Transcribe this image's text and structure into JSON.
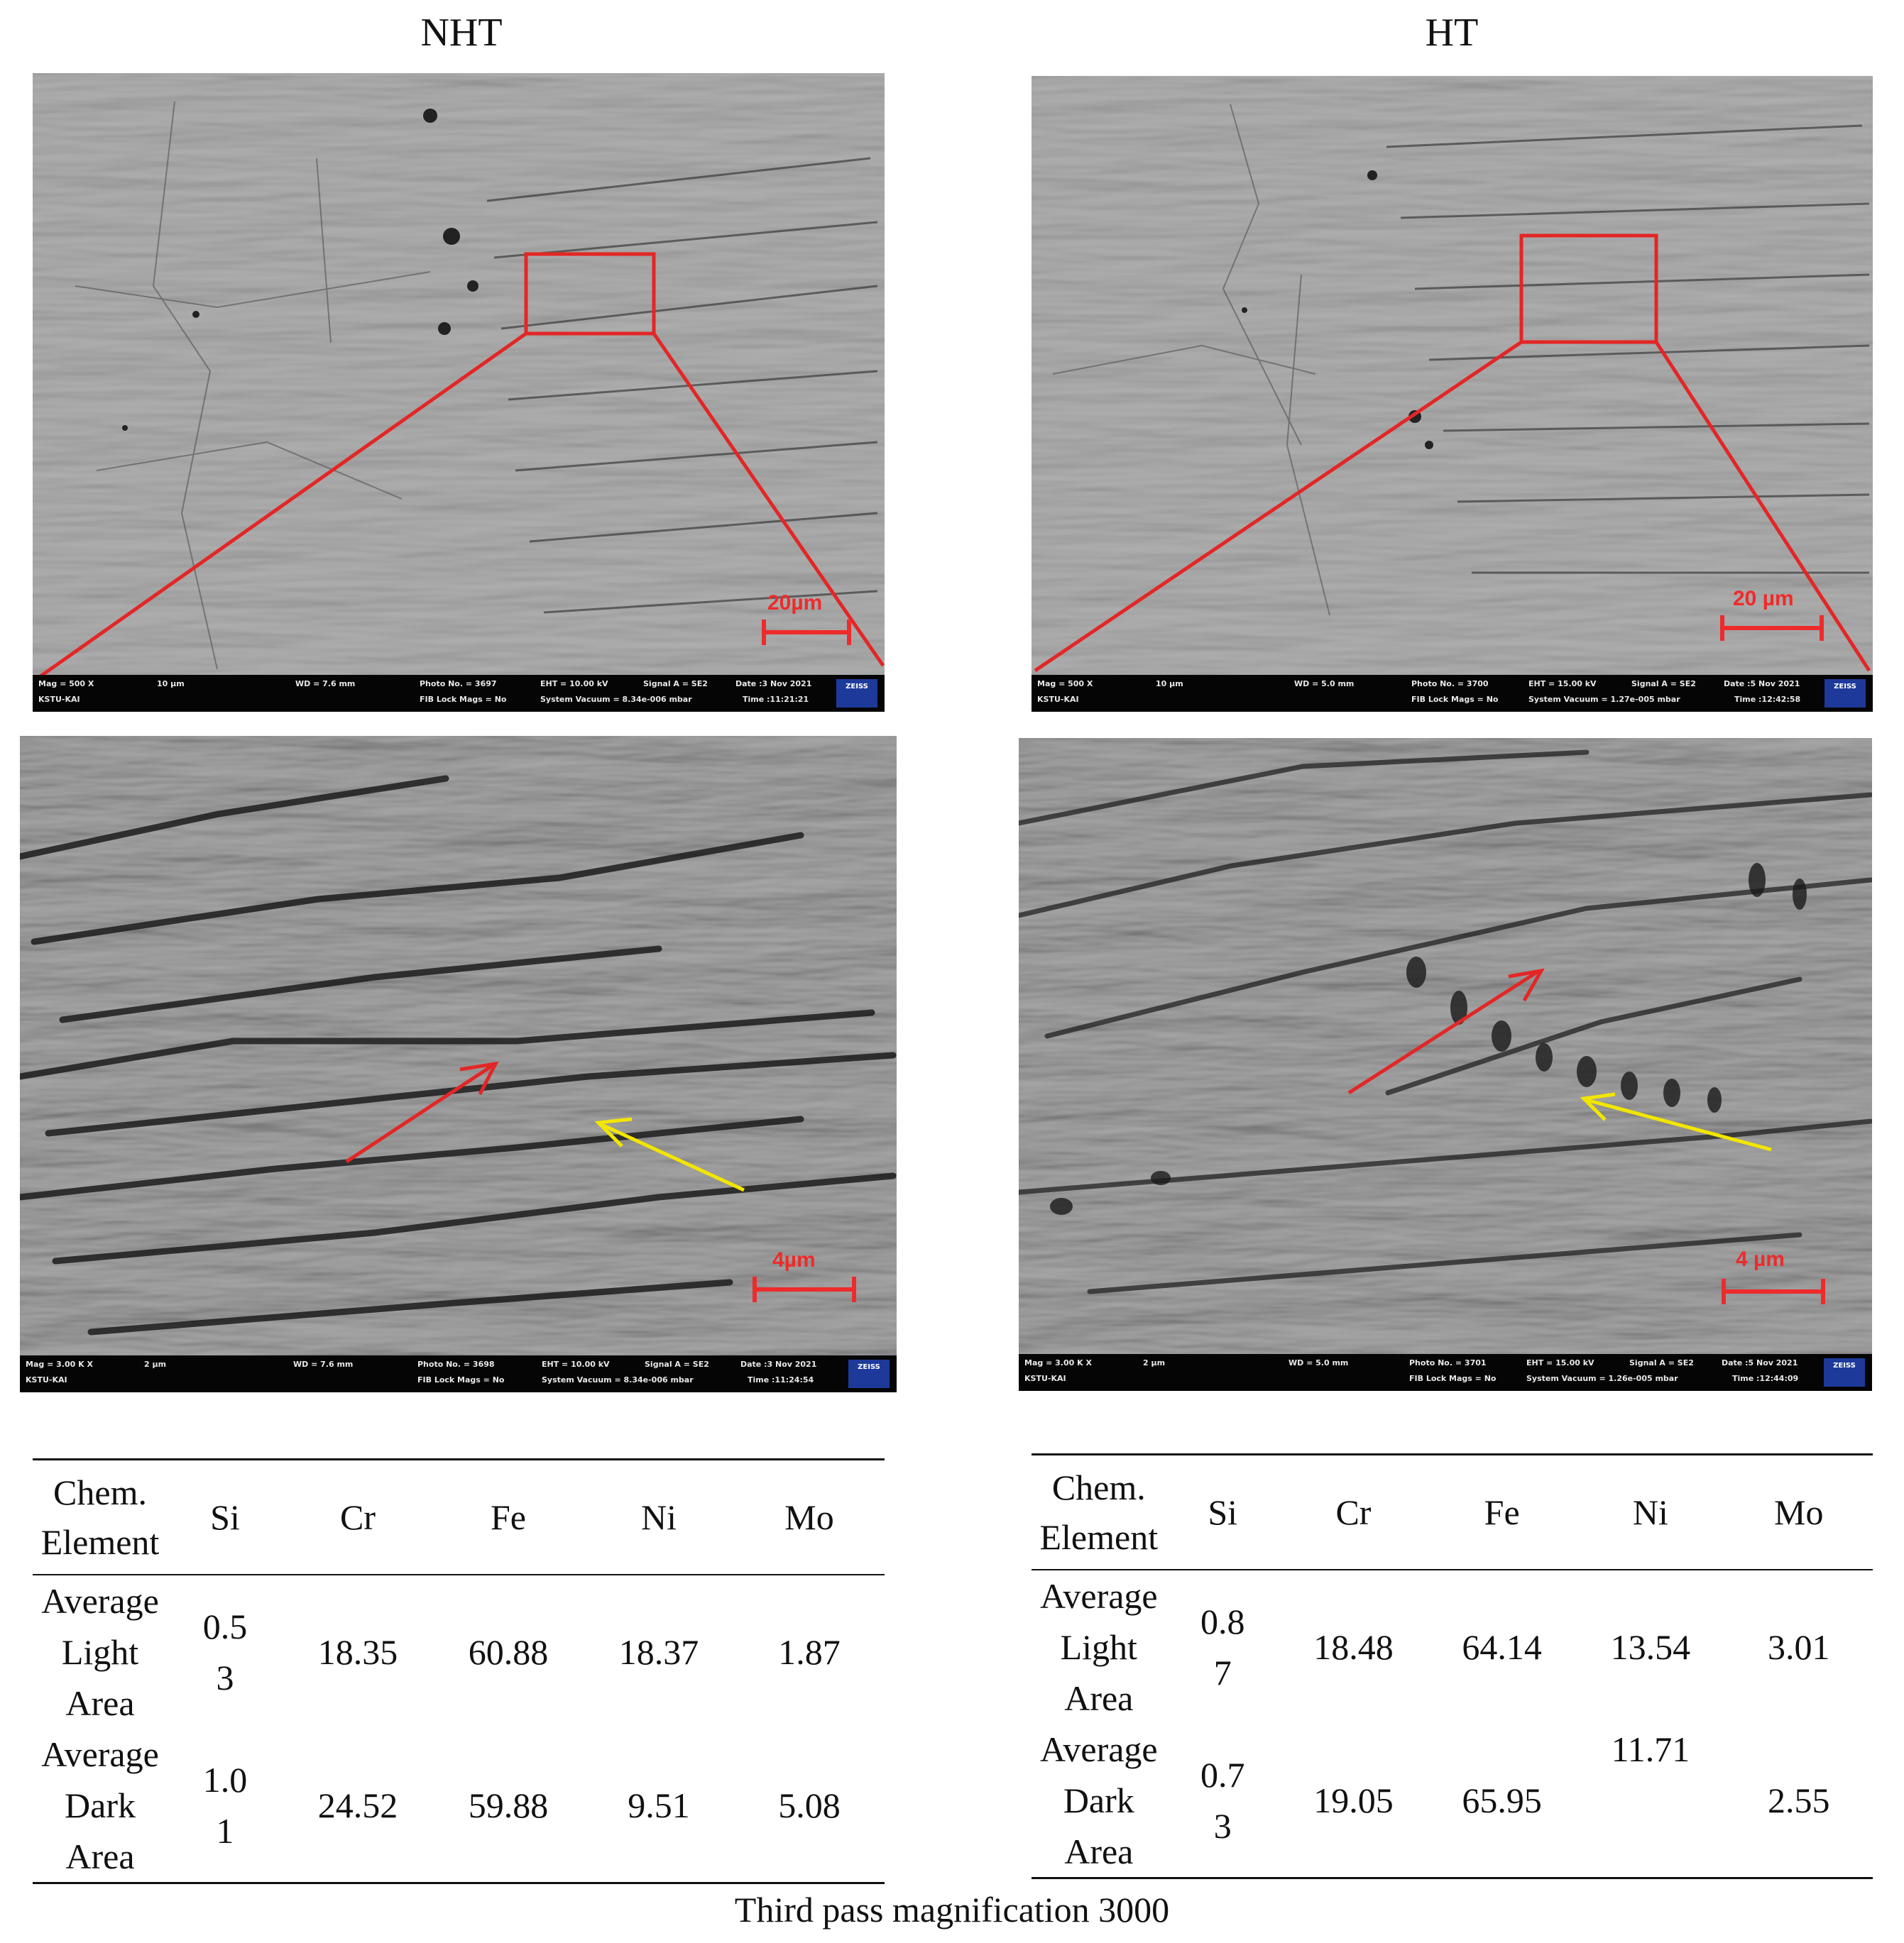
{
  "columns": {
    "left_title": "NHT",
    "right_title": "HT"
  },
  "micrographs": {
    "nht_500x": {
      "scale": "20µm",
      "bar": {
        "mag": "Mag =  500 X",
        "scale": "10 µm",
        "wd": "WD =  7.6 mm",
        "photo": "Photo No. = 3697",
        "eht": "EHT = 10.00 kV",
        "signal": "Signal A = SE2",
        "date": "Date :3 Nov 2021",
        "lab": "KSTU-KAI",
        "fib": "FIB Lock Mags = No",
        "vac": "System Vacuum = 8.34e-006 mbar",
        "time": "Time :11:21:21",
        "logo": "ZEISS"
      }
    },
    "ht_500x": {
      "scale": "20 µm",
      "bar": {
        "mag": "Mag =  500 X",
        "scale": "10 µm",
        "wd": "WD =  5.0 mm",
        "photo": "Photo No. = 3700",
        "eht": "EHT = 15.00 kV",
        "signal": "Signal A = SE2",
        "date": "Date :5 Nov 2021",
        "lab": "KSTU-KAI",
        "fib": "FIB Lock Mags = No",
        "vac": "System Vacuum = 1.27e-005 mbar",
        "time": "Time :12:42:58",
        "logo": "ZEISS"
      }
    },
    "nht_3kx": {
      "scale": "4µm",
      "bar": {
        "mag": "Mag =  3.00 K X",
        "scale": "2 µm",
        "wd": "WD =  7.6 mm",
        "photo": "Photo No. = 3698",
        "eht": "EHT = 10.00 kV",
        "signal": "Signal A = SE2",
        "date": "Date :3 Nov 2021",
        "lab": "KSTU-KAI",
        "fib": "FIB Lock Mags = No",
        "vac": "System Vacuum = 8.34e-006 mbar",
        "time": "Time :11:24:54",
        "logo": "ZEISS"
      }
    },
    "ht_3kx": {
      "scale": "4 µm",
      "bar": {
        "mag": "Mag =  3.00 K X",
        "scale": "2 µm",
        "wd": "WD =  5.0 mm",
        "photo": "Photo No. = 3701",
        "eht": "EHT = 15.00 kV",
        "signal": "Signal A = SE2",
        "date": "Date :5 Nov 2021",
        "lab": "KSTU-KAI",
        "fib": "FIB Lock Mags = No",
        "vac": "System Vacuum = 1.26e-005 mbar",
        "time": "Time :12:44:09",
        "logo": "ZEISS"
      }
    }
  },
  "tables": {
    "nht": {
      "header": [
        "Chem.\nElement",
        "Si",
        "Cr",
        "Fe",
        "Ni",
        "Mo"
      ],
      "rows": [
        [
          "Average\nLight\nArea",
          "0.5\n3",
          "18.35",
          "60.88",
          "18.37",
          "1.87"
        ],
        [
          "Average\nDark\nArea",
          "1.0\n1",
          "24.52",
          "59.88",
          "9.51",
          "5.08"
        ]
      ]
    },
    "ht": {
      "header": [
        "Chem.\nElement",
        "Si",
        "Cr",
        "Fe",
        "Ni",
        "Mo"
      ],
      "rows": [
        [
          "Average\nLight\nArea",
          "0.8\n7",
          "18.48",
          "64.14",
          "13.54",
          "3.01"
        ],
        [
          "Average\nDark\nArea",
          "0.7\n3",
          "19.05",
          "65.95",
          "11.71",
          "2.55"
        ]
      ]
    }
  },
  "caption": "Third pass magnification 3000",
  "colors": {
    "highlight": "#e32626",
    "arrow_red": "#e32626",
    "arrow_yellow": "#f2e600",
    "sem_gray": "#8b8b8b"
  }
}
